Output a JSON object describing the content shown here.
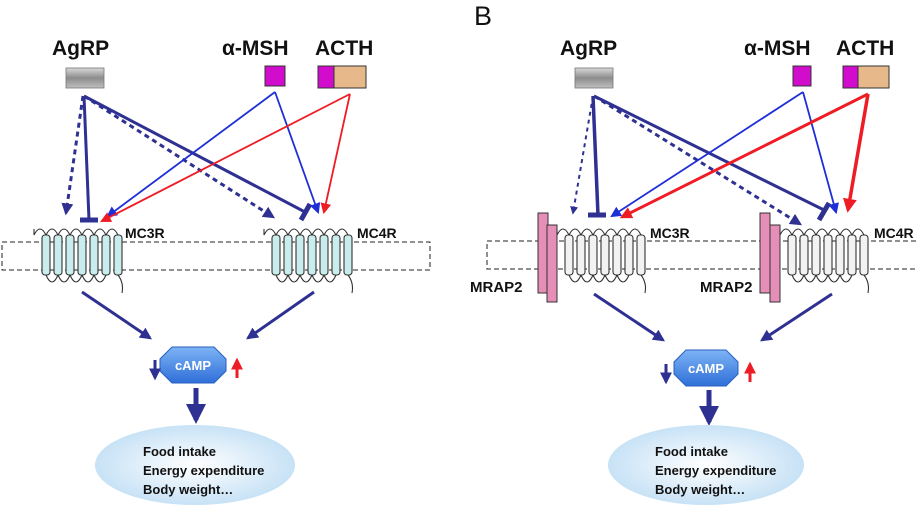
{
  "panel_b_label": "B",
  "ligands": {
    "agrp": "AgRP",
    "msh": "α-MSH",
    "acth": "ACTH"
  },
  "receptors": {
    "mc3r": "MC3R",
    "mc4r": "MC4R",
    "mc4r_cropped": "MC4R"
  },
  "accessory": {
    "mrap2": "MRAP2"
  },
  "second_messenger": "cAMP",
  "outcomes": [
    "Food intake",
    "Energy expenditure",
    "Body weight…"
  ],
  "colors": {
    "navy": "#2e3192",
    "blue": "#1f2fd6",
    "red": "#ee1c24",
    "magenta": "#d10ccc",
    "tan": "#e6b88a",
    "gray": "#999999",
    "mrap_pink": "#e58fb8",
    "rec_cyan": "#c9ecec",
    "rec_white": "#f2f2f2",
    "camp_blue": "#3d7fe0",
    "ellipse_blue": "#cfe5f7"
  }
}
